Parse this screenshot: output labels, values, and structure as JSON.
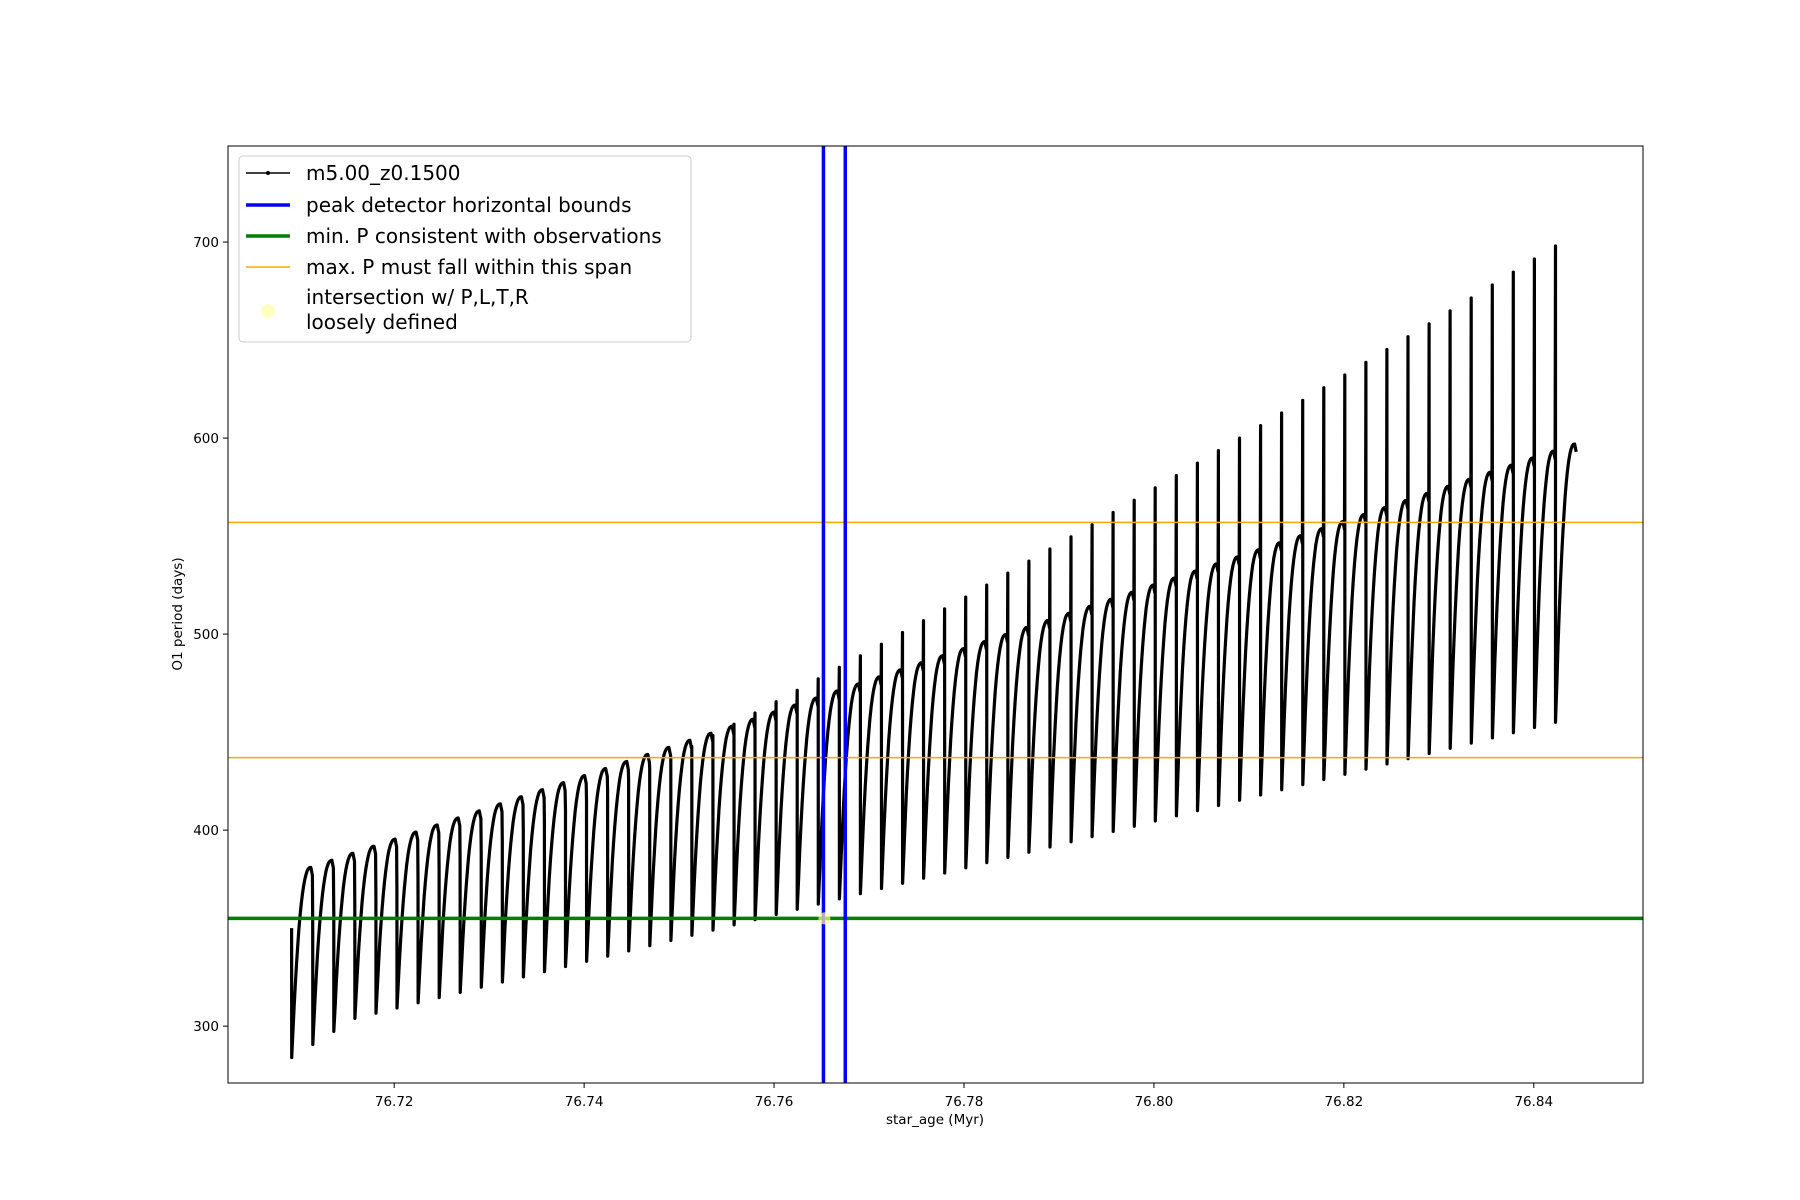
{
  "chart_data": {
    "type": "line",
    "title": "",
    "xlabel": "star_age (Myr)",
    "ylabel": "O1 period (days)",
    "xlim": [
      76.7025,
      76.8515
    ],
    "ylim": [
      271,
      749
    ],
    "x_ticks": [
      76.72,
      76.74,
      76.76,
      76.78,
      76.8,
      76.82,
      76.84
    ],
    "x_tick_labels": [
      "76.72",
      "76.74",
      "76.76",
      "76.78",
      "76.80",
      "76.82",
      "76.84"
    ],
    "y_ticks": [
      300,
      400,
      500,
      600,
      700
    ],
    "y_tick_labels": [
      "300",
      "400",
      "500",
      "600",
      "700"
    ],
    "grid": false,
    "legend_position": "upper-left",
    "series_main": {
      "name": "m5.00_z0.1500",
      "color": "#000000",
      "x_start": 76.7092,
      "x_end": 76.8445,
      "pulses": 61,
      "trough_start": 296,
      "trough_end": 455,
      "plateau_start": 381,
      "plateau_end": 597,
      "spike_start": 350,
      "spike_end": 698
    },
    "vlines": {
      "name": "peak detector horizontal bounds",
      "color": "#0000ff",
      "x": [
        76.7652,
        76.7675
      ]
    },
    "hline_min": {
      "name": "min. P consistent with observations",
      "color": "#008000",
      "y": 355
    },
    "hlines_max": {
      "name": "max. P must fall within this span",
      "color": "#ffa500",
      "y": [
        437,
        557
      ]
    },
    "intersection": {
      "name_line1": "intersection w/ P,L,T,R",
      "name_line2": "loosely defined",
      "color": "#ffff99",
      "x": 76.7653,
      "y": 355
    }
  }
}
